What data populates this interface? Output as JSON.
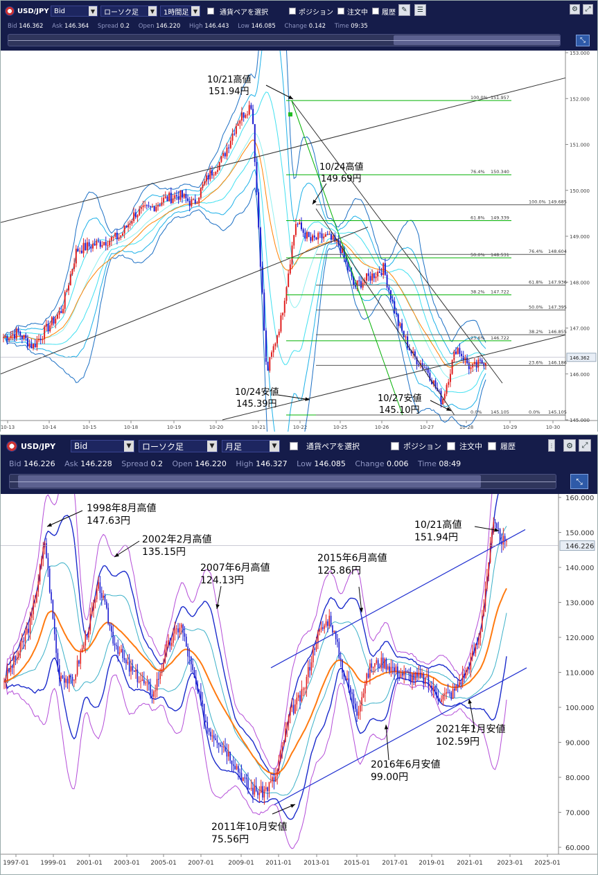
{
  "top": {
    "symbol": "USD/JPY",
    "price_type": "Bid",
    "chart_type": "ローソク足",
    "timeframe": "1時間足",
    "pair_select_label": "通貨ペアを選択",
    "checks": [
      "ポジション",
      "注文中",
      "履歴"
    ],
    "quote": {
      "bid_k": "Bid",
      "bid": "146.362",
      "ask_k": "Ask",
      "ask": "146.364",
      "spread_k": "Spread",
      "spread": "0.2",
      "open_k": "Open",
      "open": "146.220",
      "high_k": "High",
      "high": "146.443",
      "low_k": "Low",
      "low": "146.085",
      "change_k": "Change",
      "change": "0.142",
      "time_k": "Time",
      "time": "09:35"
    },
    "y_ticks": [
      "153.000",
      "152.000",
      "151.000",
      "150.000",
      "149.000",
      "148.000",
      "147.000",
      "146.000",
      "145.000"
    ],
    "x_ticks": [
      "10-13",
      "10-14",
      "10-15",
      "10-18",
      "10-19",
      "10-20",
      "10-21",
      "10-22",
      "10-25",
      "10-26",
      "10-27",
      "10-28",
      "10-29",
      "10-30"
    ],
    "current_price": "146.362",
    "fib1": [
      {
        "pct": "100.0%",
        "val": "151.957"
      },
      {
        "pct": "76.4%",
        "val": "150.340"
      },
      {
        "pct": "61.8%",
        "val": "149.339"
      },
      {
        "pct": "50.0%",
        "val": "148.531"
      },
      {
        "pct": "38.2%",
        "val": "147.722"
      },
      {
        "pct": "23.6%",
        "val": "146.722"
      },
      {
        "pct": "0.0%",
        "val": "145.105"
      }
    ],
    "fib2": [
      {
        "pct": "100.0%",
        "val": "149.685"
      },
      {
        "pct": "76.4%",
        "val": "148.604"
      },
      {
        "pct": "61.8%",
        "val": "147.936"
      },
      {
        "pct": "50.0%",
        "val": "147.395"
      },
      {
        "pct": "38.2%",
        "val": "146.855"
      },
      {
        "pct": "23.6%",
        "val": "146.186"
      },
      {
        "pct": "0.0%",
        "val": "145.105"
      }
    ],
    "annotations": [
      {
        "l1": "10/21高値",
        "l2": "151.94円"
      },
      {
        "l1": "10/24高値",
        "l2": "149.69円"
      },
      {
        "l1": "10/24安値",
        "l2": "145.39円"
      },
      {
        "l1": "10/27安値",
        "l2": "145.10円"
      }
    ],
    "colors": {
      "up": "#e02020",
      "down": "#1c1cd0",
      "fib": "#00b000",
      "ema": "#ff8000"
    }
  },
  "bottom": {
    "symbol": "USD/JPY",
    "price_type": "Bid",
    "chart_type": "ローソク足",
    "timeframe": "月足",
    "pair_select_label": "通貨ペアを選択",
    "checks": [
      "ポジション",
      "注文中",
      "履歴"
    ],
    "quote": {
      "bid_k": "Bid",
      "bid": "146.226",
      "ask_k": "Ask",
      "ask": "146.228",
      "spread_k": "Spread",
      "spread": "0.2",
      "open_k": "Open",
      "open": "146.220",
      "high_k": "High",
      "high": "146.327",
      "low_k": "Low",
      "low": "146.085",
      "change_k": "Change",
      "change": "0.006",
      "time_k": "Time",
      "time": "08:49"
    },
    "y_ticks": [
      "160.000",
      "150.000",
      "140.000",
      "130.000",
      "120.000",
      "110.000",
      "100.000",
      "90.000",
      "80.000",
      "70.000",
      "60.000"
    ],
    "x_ticks": [
      "1997-01",
      "1999-01",
      "2001-01",
      "2003-01",
      "2005-01",
      "2007-01",
      "2009-01",
      "2011-01",
      "2013-01",
      "2015-01",
      "2017-01",
      "2019-01",
      "2021-01",
      "2023-01",
      "2025-01"
    ],
    "current_price": "146.226",
    "annotations": [
      {
        "l1": "1998年8月高値",
        "l2": "147.63円"
      },
      {
        "l1": "2002年2月高値",
        "l2": "135.15円"
      },
      {
        "l1": "2007年6月高値",
        "l2": "124.13円"
      },
      {
        "l1": "2015年6月高値",
        "l2": "125.86円"
      },
      {
        "l1": "10/21高値",
        "l2": "151.94円"
      },
      {
        "l1": "2021年1月安値",
        "l2": "102.59円"
      },
      {
        "l1": "2016年6月安値",
        "l2": "99.00円"
      },
      {
        "l1": "2011年10月安値",
        "l2": "75.56円"
      }
    ]
  },
  "chart_data": [
    {
      "type": "line",
      "title": "",
      "ylim": [
        145.0,
        153.0
      ],
      "categories": [
        "10-13",
        "10-14",
        "10-15",
        "10-18",
        "10-19",
        "10-20",
        "10-21",
        "10-22",
        "10-25",
        "10-26",
        "10-27",
        "10-28"
      ],
      "series": [
        {
          "values": [
            146.8,
            146.9,
            148.7,
            148.9,
            149.5,
            149.9,
            150.3,
            151.9,
            149.0,
            148.8,
            147.4,
            146.3
          ]
        }
      ]
    },
    {
      "type": "line",
      "title": "",
      "ylim": [
        60,
        160
      ],
      "categories": [
        "1997-01",
        "1998-08",
        "2000-01",
        "2002-02",
        "2004-01",
        "2005-06",
        "2007-06",
        "2008-06",
        "2009-06",
        "2010-06",
        "2011-10",
        "2012-06",
        "2013-06",
        "2014-06",
        "2015-06",
        "2016-06",
        "2017-06",
        "2018-06",
        "2019-06",
        "2020-06",
        "2021-01",
        "2022-03",
        "2022-10"
      ],
      "series": [
        {
          "values": [
            118,
            147.6,
            105,
            135,
            108,
            104,
            124,
            112,
            95,
            88,
            75.6,
            79,
            100,
            102,
            125.9,
            99,
            112,
            111,
            108,
            107,
            102.6,
            115,
            151.9
          ]
        }
      ]
    }
  ]
}
